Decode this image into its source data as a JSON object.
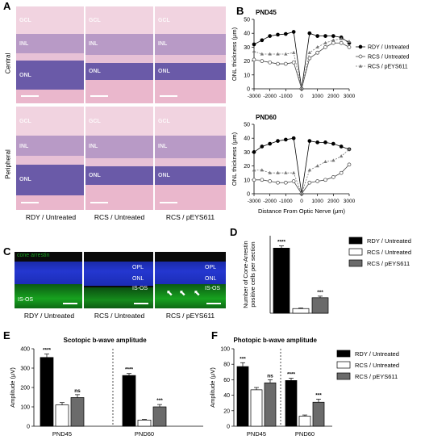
{
  "panels": {
    "a": "A",
    "b": "B",
    "c": "C",
    "d": "D",
    "e": "E",
    "f": "F"
  },
  "histology": {
    "row_labels": [
      "Central",
      "Peripheral"
    ],
    "column_labels": [
      "RDY / Untreated",
      "RCS / Untreated",
      "RCS / pEYS611"
    ],
    "layer_labels": [
      "GCL",
      "INL",
      "ONL"
    ]
  },
  "fluorescence": {
    "stain_label": "cone arrestin",
    "layer_labels": [
      "OPL",
      "ONL",
      "IS-OS"
    ],
    "column_labels": [
      "RDY / Untreated",
      "RCS / Untreated",
      "RCS / pEYS611"
    ],
    "arrow_glyph": "⬉"
  },
  "colors": {
    "rdy": "#000000",
    "rcs_untreated": "#ffffff",
    "rcs_peys611": "#6b6b6b",
    "he_pink": "#e8b8cc",
    "he_purple": "#6a5aa8",
    "fluor_blue": "#2437d0",
    "fluor_green": "#17a21f"
  },
  "chart_data": [
    {
      "id": "B-PND45",
      "type": "line",
      "title": "PND45",
      "xlabel": "",
      "ylabel": "ONL thickness (μm)",
      "xlim": [
        -3000,
        3000
      ],
      "ylim": [
        0,
        50
      ],
      "x_ticks": [
        -3000,
        -2000,
        -1000,
        0,
        1000,
        2000,
        3000
      ],
      "y_ticks": [
        0,
        10,
        20,
        30,
        40,
        50
      ],
      "legend": "right",
      "series": [
        {
          "name": "RDY / Untreated",
          "marker": "filled-circle",
          "x": [
            -3000,
            -2500,
            -2000,
            -1500,
            -1000,
            -500,
            0,
            500,
            1000,
            1500,
            2000,
            2500,
            3000
          ],
          "y": [
            32,
            35,
            38,
            39,
            39.5,
            41,
            0,
            40,
            38,
            38,
            38,
            37,
            33
          ]
        },
        {
          "name": "RCS / Untreated",
          "marker": "open-circle",
          "x": [
            -3000,
            -2500,
            -2000,
            -1500,
            -1000,
            -500,
            0,
            500,
            1000,
            1500,
            2000,
            2500,
            3000
          ],
          "y": [
            21,
            20,
            19,
            18,
            18,
            19,
            0,
            22,
            26,
            30,
            33,
            33,
            30
          ]
        },
        {
          "name": "RCS / pEYS611",
          "marker": "triangle",
          "x": [
            -3000,
            -2500,
            -2000,
            -1500,
            -1000,
            -500,
            0,
            500,
            1000,
            1500,
            2000,
            2500,
            3000
          ],
          "y": [
            27,
            25,
            25,
            25,
            25,
            26,
            0,
            26,
            30,
            33,
            35,
            36,
            34
          ]
        }
      ]
    },
    {
      "id": "B-PND60",
      "type": "line",
      "title": "PND60",
      "xlabel": "Distance From Optic Nerve (μm)",
      "ylabel": "ONL thickness (μm)",
      "xlim": [
        -3000,
        3000
      ],
      "ylim": [
        0,
        50
      ],
      "x_ticks": [
        -3000,
        -2000,
        -1000,
        0,
        1000,
        2000,
        3000
      ],
      "y_ticks": [
        0,
        10,
        20,
        30,
        40,
        50
      ],
      "series": [
        {
          "name": "RDY / Untreated",
          "x": [
            -3000,
            -2500,
            -2000,
            -1500,
            -1000,
            -500,
            0,
            500,
            1000,
            1500,
            2000,
            2500,
            3000
          ],
          "y": [
            30,
            34,
            36,
            38,
            39,
            40,
            0,
            38,
            37,
            37,
            36,
            34,
            32
          ]
        },
        {
          "name": "RCS / Untreated",
          "x": [
            -3000,
            -2500,
            -2000,
            -1500,
            -1000,
            -500,
            0,
            500,
            1000,
            1500,
            2000,
            2500,
            3000
          ],
          "y": [
            10,
            10,
            9,
            8,
            8,
            9,
            0,
            8,
            9,
            10,
            12,
            15,
            21
          ]
        },
        {
          "name": "RCS / pEYS611",
          "x": [
            -3000,
            -2500,
            -2000,
            -1500,
            -1000,
            -500,
            0,
            500,
            1000,
            1500,
            2000,
            2500,
            3000
          ],
          "y": [
            17,
            17,
            15,
            15,
            15,
            15,
            0,
            17,
            20,
            23,
            24,
            27,
            32
          ]
        }
      ]
    },
    {
      "id": "D",
      "type": "bar",
      "title": "",
      "xlabel": "",
      "ylabel": "Number of Cone-Arrestin positive cells per section",
      "ylim": [
        0,
        250
      ],
      "categories": [
        "RDY / Untreated",
        "RCS / Untreated",
        "RCS / pEYS611"
      ],
      "values": [
        210,
        15,
        50
      ],
      "errors": [
        7,
        2,
        5
      ],
      "significance": [
        "****",
        "",
        "***"
      ],
      "legend": "right"
    },
    {
      "id": "E",
      "type": "bar",
      "title": "Scotopic b-wave amplitude",
      "xlabel": "",
      "ylabel": "Amplitude (μV)",
      "ylim": [
        0,
        400
      ],
      "y_ticks": [
        0,
        100,
        200,
        300,
        400
      ],
      "categories": [
        "PND45",
        "PND60"
      ],
      "series": [
        {
          "name": "RDY / Untreated",
          "values": [
            355,
            262
          ],
          "errors": [
            18,
            10
          ]
        },
        {
          "name": "RCS / Untreated",
          "values": [
            110,
            32
          ],
          "errors": [
            12,
            3
          ]
        },
        {
          "name": "RCS / pEYS611",
          "values": [
            148,
            100
          ],
          "errors": [
            15,
            12
          ]
        }
      ],
      "significance": [
        [
          "****",
          "",
          "ns"
        ],
        [
          "****",
          "",
          "***"
        ]
      ]
    },
    {
      "id": "F",
      "type": "bar",
      "title": "Photopic b-wave amplitude",
      "xlabel": "",
      "ylabel": "Amplitude (μV)",
      "ylim": [
        0,
        100
      ],
      "y_ticks": [
        0,
        20,
        40,
        60,
        80,
        100
      ],
      "categories": [
        "PND45",
        "PND60"
      ],
      "series": [
        {
          "name": "RDY / Untreated",
          "values": [
            77,
            59
          ],
          "errors": [
            5,
            3
          ]
        },
        {
          "name": "RCS / Untreated",
          "values": [
            47,
            13
          ],
          "errors": [
            3,
            1.5
          ]
        },
        {
          "name": "RCS / pEYS611",
          "values": [
            56,
            31
          ],
          "errors": [
            4,
            4
          ]
        }
      ],
      "significance": [
        [
          "***",
          "",
          "ns"
        ],
        [
          "****",
          "",
          "***"
        ]
      ],
      "legend": "right"
    }
  ]
}
